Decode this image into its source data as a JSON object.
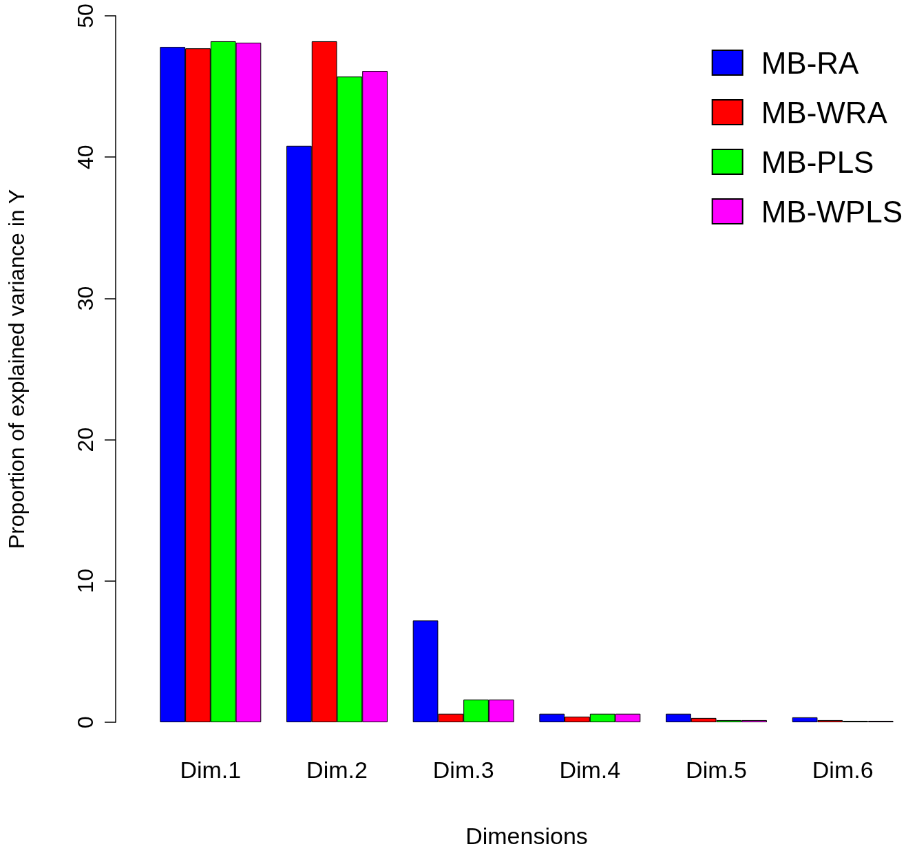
{
  "chart_data": {
    "type": "bar",
    "xlabel": "Dimensions",
    "ylabel": "Proportion of explained variance in Y",
    "categories": [
      "Dim.1",
      "Dim.2",
      "Dim.3",
      "Dim.4",
      "Dim.5",
      "Dim.6"
    ],
    "series": [
      {
        "name": "MB-RA",
        "color": "#0000ff",
        "values": [
          47.8,
          40.8,
          7.2,
          0.6,
          0.6,
          0.35
        ]
      },
      {
        "name": "MB-WRA",
        "color": "#ff0000",
        "values": [
          47.7,
          48.2,
          0.6,
          0.4,
          0.3,
          0.15
        ]
      },
      {
        "name": "MB-PLS",
        "color": "#00ff00",
        "values": [
          48.2,
          45.7,
          1.6,
          0.6,
          0.15,
          0.1
        ]
      },
      {
        "name": "MB-WPLS",
        "color": "#ff00ff",
        "values": [
          48.1,
          46.1,
          1.6,
          0.6,
          0.15,
          0.1
        ]
      }
    ],
    "ylim": [
      0,
      50
    ],
    "yticks": [
      0,
      10,
      20,
      30,
      40,
      50
    ],
    "grid": false,
    "legend": "top right"
  }
}
